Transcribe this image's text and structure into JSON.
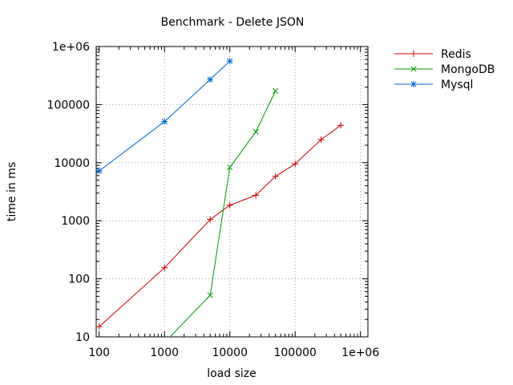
{
  "chart_data": {
    "type": "line",
    "title": "Benchmark - Delete JSON",
    "xlabel": "load size",
    "ylabel": "time in ms",
    "x_scale": "log",
    "y_scale": "log",
    "xlim": [
      90,
      1300000
    ],
    "ylim": [
      10,
      1000000
    ],
    "grid": true,
    "legend_position": "outside-top-right",
    "x_ticks": [
      {
        "value": 100,
        "label": "100"
      },
      {
        "value": 1000,
        "label": "1000"
      },
      {
        "value": 10000,
        "label": "10000"
      },
      {
        "value": 100000,
        "label": "100000"
      },
      {
        "value": 1000000,
        "label": "1e+06"
      }
    ],
    "y_ticks": [
      {
        "value": 10,
        "label": "10"
      },
      {
        "value": 100,
        "label": "100"
      },
      {
        "value": 1000,
        "label": "1000"
      },
      {
        "value": 10000,
        "label": "10000"
      },
      {
        "value": 100000,
        "label": "100000"
      },
      {
        "value": 1000000,
        "label": "1e+06"
      }
    ],
    "series": [
      {
        "name": "Redis",
        "color": "#cc0000",
        "marker": "plus",
        "points": [
          [
            100,
            15
          ],
          [
            1000,
            155
          ],
          [
            5000,
            1050
          ],
          [
            10000,
            1850
          ],
          [
            25000,
            2750
          ],
          [
            50000,
            5800
          ],
          [
            100000,
            9500
          ],
          [
            250000,
            25000
          ],
          [
            500000,
            44000
          ]
        ]
      },
      {
        "name": "MongoDB",
        "color": "#009900",
        "marker": "cross",
        "points": [
          [
            1000,
            8
          ],
          [
            5000,
            52
          ],
          [
            10000,
            8300
          ],
          [
            25000,
            34000
          ],
          [
            50000,
            172000
          ]
        ]
      },
      {
        "name": "Mysql",
        "color": "#0066cc",
        "marker": "star",
        "points": [
          [
            100,
            7200
          ],
          [
            1000,
            51000
          ],
          [
            5000,
            270000
          ],
          [
            10000,
            560000
          ]
        ]
      }
    ]
  }
}
